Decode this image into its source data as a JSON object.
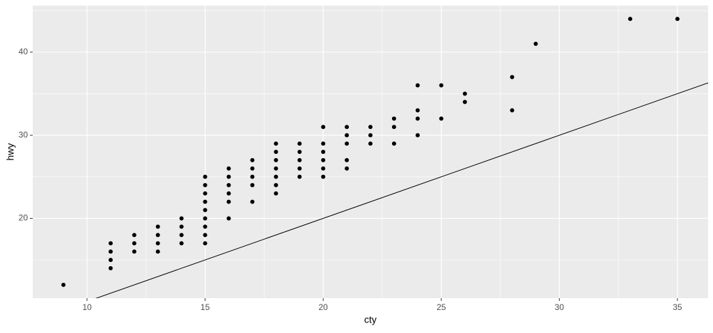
{
  "chart_data": {
    "type": "scatter",
    "x_label": "cty",
    "y_label": "hwy",
    "x": [
      9,
      11,
      11,
      11,
      11,
      12,
      12,
      12,
      13,
      13,
      13,
      13,
      14,
      14,
      14,
      14,
      15,
      15,
      15,
      15,
      15,
      15,
      15,
      15,
      15,
      16,
      16,
      16,
      16,
      16,
      16,
      17,
      17,
      17,
      17,
      17,
      18,
      18,
      18,
      18,
      18,
      18,
      18,
      19,
      19,
      19,
      19,
      19,
      20,
      20,
      20,
      20,
      20,
      20,
      21,
      21,
      21,
      21,
      21,
      22,
      22,
      22,
      23,
      23,
      23,
      24,
      24,
      24,
      24,
      25,
      25,
      26,
      26,
      28,
      28,
      29,
      33,
      35
    ],
    "values": [
      12,
      14,
      15,
      16,
      17,
      16,
      17,
      18,
      16,
      17,
      18,
      19,
      17,
      18,
      19,
      20,
      17,
      18,
      19,
      20,
      21,
      22,
      23,
      24,
      25,
      20,
      22,
      23,
      24,
      25,
      26,
      22,
      24,
      25,
      26,
      27,
      23,
      24,
      25,
      26,
      27,
      28,
      29,
      25,
      26,
      27,
      28,
      29,
      25,
      26,
      27,
      28,
      29,
      31,
      26,
      27,
      29,
      30,
      31,
      29,
      30,
      31,
      29,
      31,
      32,
      30,
      32,
      33,
      36,
      32,
      36,
      34,
      35,
      33,
      37,
      41,
      44,
      44
    ],
    "color": "#000000",
    "reference_line": {
      "slope": 1,
      "intercept": 0,
      "color": "#000000"
    },
    "xlim": [
      7.7,
      36.3
    ],
    "ylim": [
      10.4,
      45.6
    ],
    "xticks": [
      10,
      15,
      20,
      25,
      30,
      35
    ],
    "yticks": [
      20,
      30,
      40
    ],
    "grid": true
  }
}
